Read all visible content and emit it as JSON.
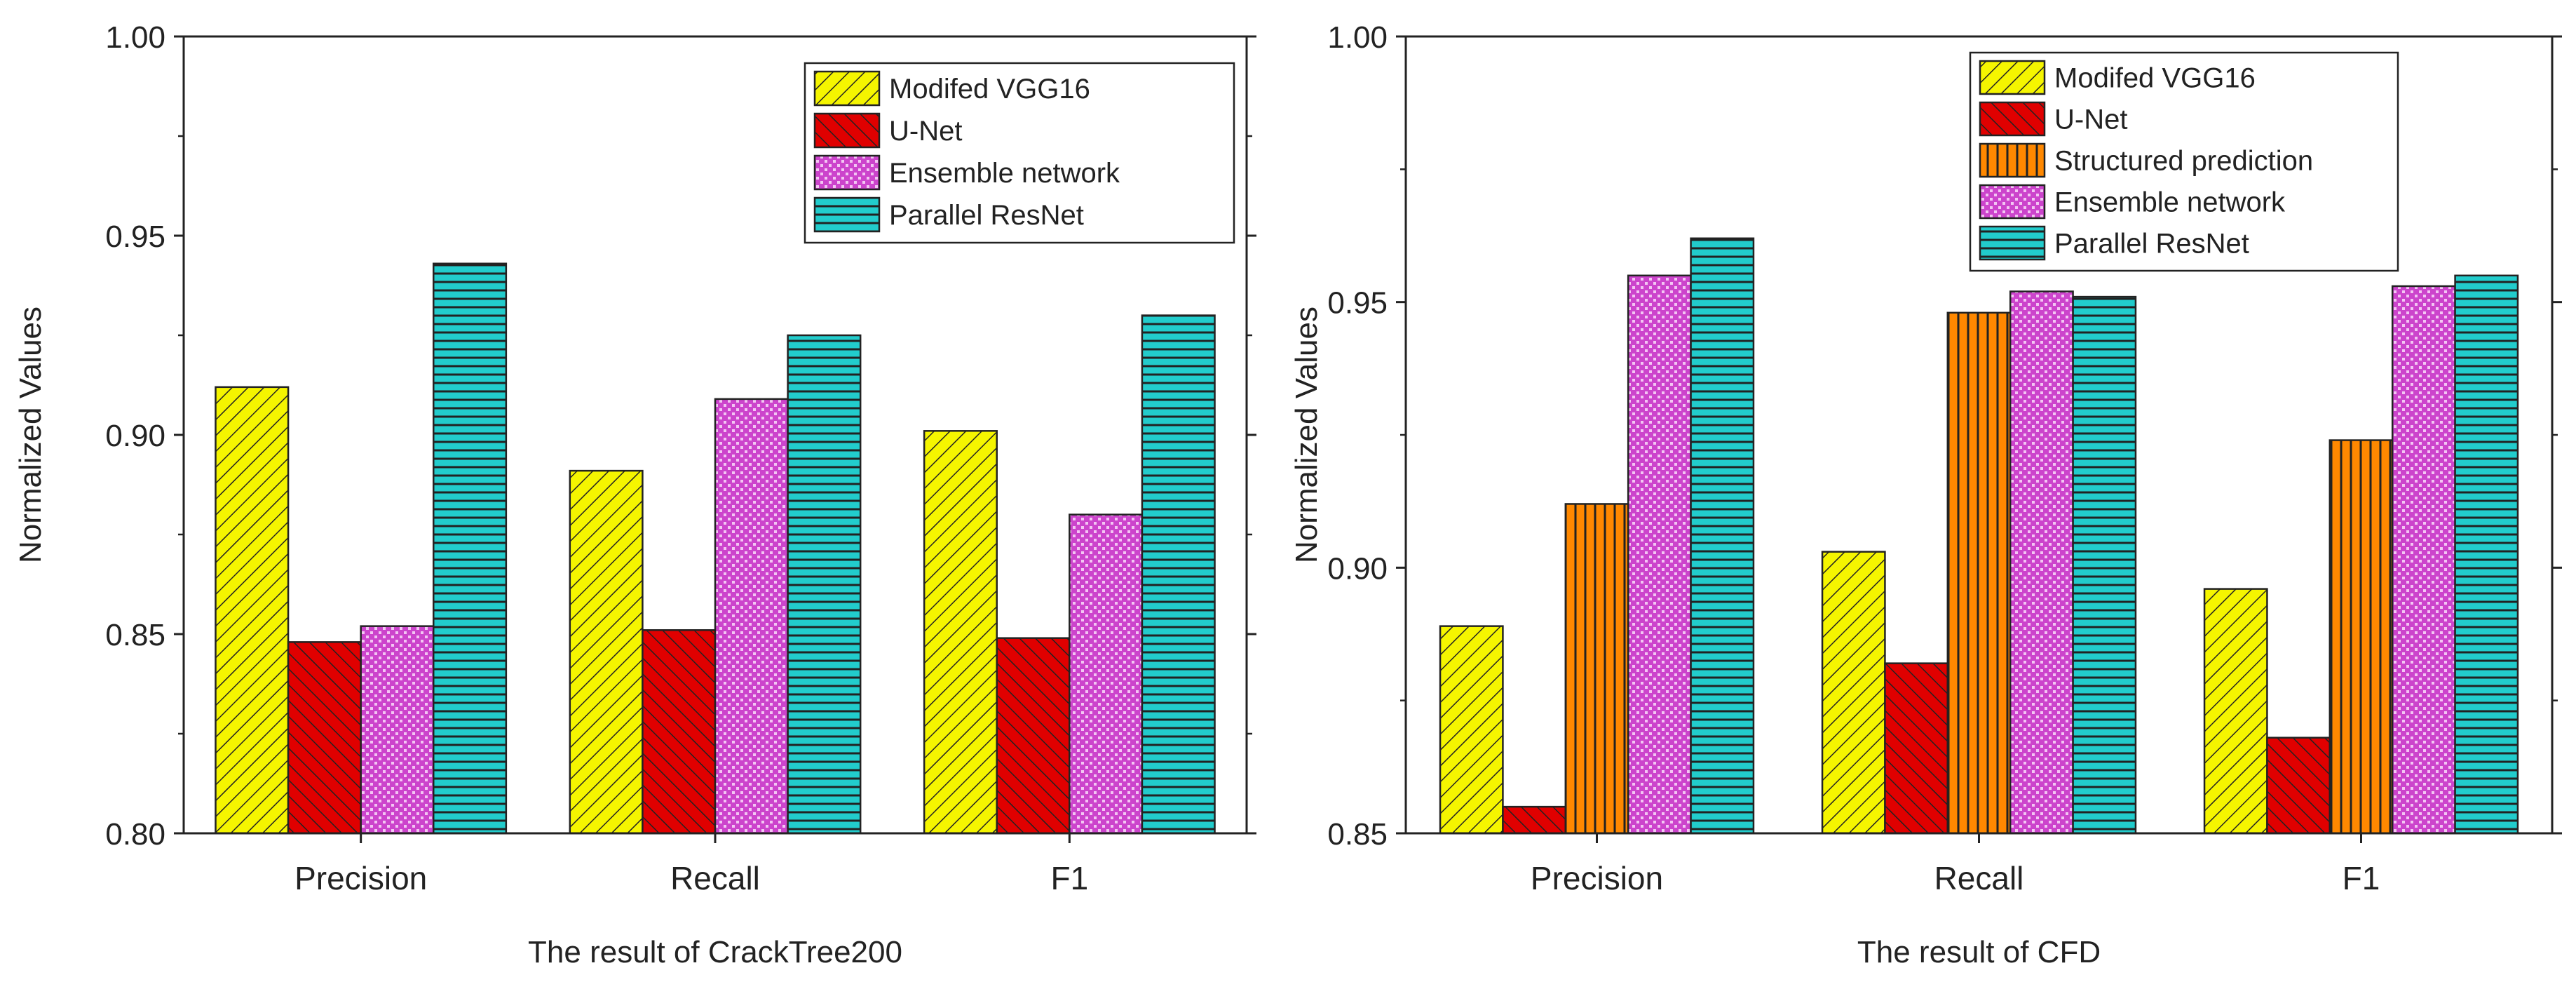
{
  "charts": [
    {
      "type": "bar",
      "title": "",
      "xlabel": "The result of CrackTree200",
      "ylabel": "Normalized Values",
      "categories": [
        "Precision",
        "Recall",
        "F1"
      ],
      "ylim": [
        0.8,
        1.0
      ],
      "yticks": [
        "0.80",
        "0.85",
        "0.90",
        "0.95",
        "1.00"
      ],
      "yticks_values": [
        0.8,
        0.85,
        0.9,
        0.95,
        1.0
      ],
      "legend_position": "top-right",
      "series": [
        {
          "name": "Modifed VGG16",
          "values": [
            0.912,
            0.891,
            0.901
          ],
          "color": "#f5f500",
          "pattern": "diag-left"
        },
        {
          "name": "U-Net",
          "values": [
            0.848,
            0.851,
            0.849
          ],
          "color": "#e00000",
          "pattern": "diag-right"
        },
        {
          "name": "Ensemble network",
          "values": [
            0.852,
            0.909,
            0.88
          ],
          "color": "#cc44cc",
          "pattern": "dots"
        },
        {
          "name": "Parallel ResNet",
          "values": [
            0.943,
            0.925,
            0.93
          ],
          "color": "#22cccc",
          "pattern": "horizontal"
        }
      ]
    },
    {
      "type": "bar",
      "title": "",
      "xlabel": "The result of CFD",
      "ylabel": "Normalized Values",
      "categories": [
        "Precision",
        "Recall",
        "F1"
      ],
      "ylim": [
        0.85,
        1.0
      ],
      "yticks": [
        "0.85",
        "0.90",
        "0.95",
        "1.00"
      ],
      "yticks_values": [
        0.85,
        0.9,
        0.95,
        1.0
      ],
      "legend_position": "top-right",
      "series": [
        {
          "name": "Modifed VGG16",
          "values": [
            0.889,
            0.903,
            0.896
          ],
          "color": "#f5f500",
          "pattern": "diag-left"
        },
        {
          "name": "U-Net",
          "values": [
            0.855,
            0.882,
            0.868
          ],
          "color": "#e00000",
          "pattern": "diag-right"
        },
        {
          "name": "Structured prediction",
          "values": [
            0.912,
            0.948,
            0.924
          ],
          "color": "#ff8800",
          "pattern": "vertical"
        },
        {
          "name": "Ensemble network",
          "values": [
            0.955,
            0.952,
            0.953
          ],
          "color": "#cc44cc",
          "pattern": "dots"
        },
        {
          "name": "Parallel ResNet",
          "values": [
            0.962,
            0.951,
            0.955
          ],
          "color": "#22cccc",
          "pattern": "horizontal"
        }
      ]
    }
  ]
}
